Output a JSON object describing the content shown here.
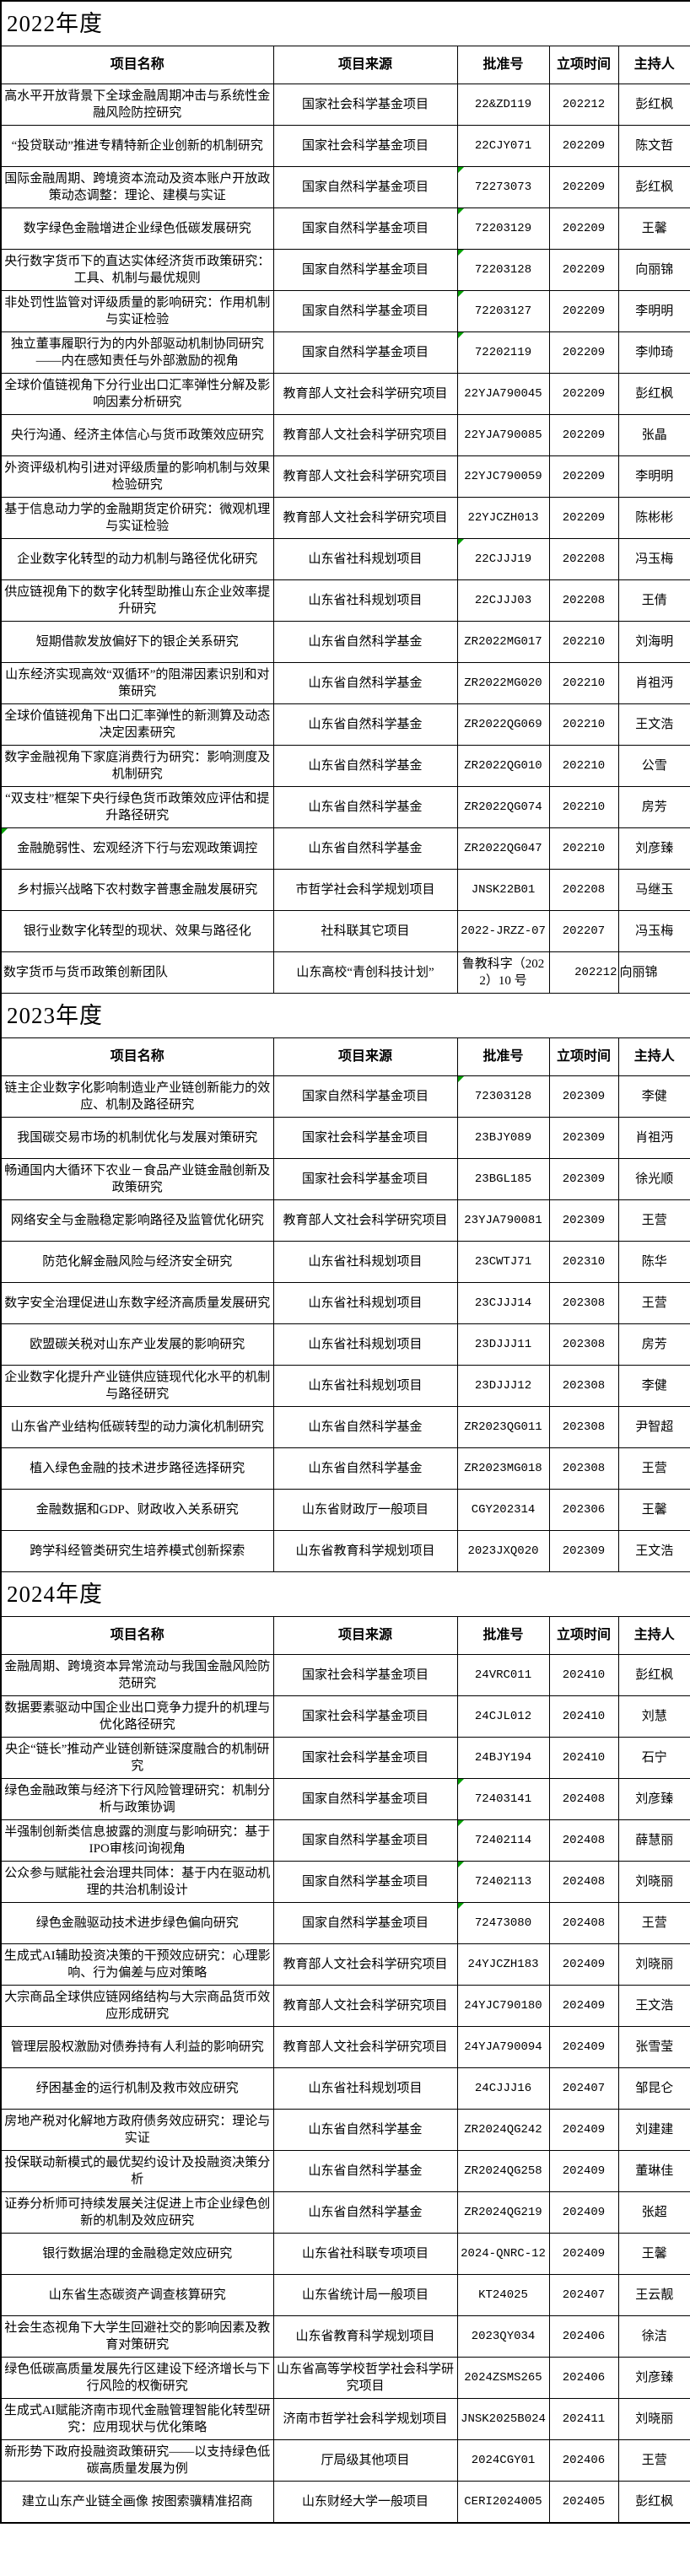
{
  "colors": {
    "background": "#ffffff",
    "border": "#000000",
    "text": "#000000",
    "error_flag_green": "#00a000"
  },
  "columns": [
    "项目名称",
    "项目来源",
    "批准号",
    "立项时间",
    "主持人"
  ],
  "sections": [
    {
      "year": "2022年度",
      "rows": [
        {
          "name": "高水平开放背景下全球金融周期冲击与系统性金融风险防控研究",
          "source": "国家社会科学基金项目",
          "no": "22&ZD119",
          "date": "202212",
          "host": "彭红枫"
        },
        {
          "name": "“投贷联动”推进专精特新企业创新的机制研究",
          "source": "国家社会科学基金项目",
          "no": "22CJY071",
          "date": "202209",
          "host": "陈文哲"
        },
        {
          "name": "国际金融周期、跨境资本流动及资本账户开放政策动态调整：理论、建模与实证",
          "source": "国家自然科学基金项目",
          "no": "72273073",
          "date": "202209",
          "host": "彭红枫",
          "no_flag": true
        },
        {
          "name": "数字绿色金融增进企业绿色低碳发展研究",
          "source": "国家自然科学基金项目",
          "no": "72203129",
          "date": "202209",
          "host": "王馨",
          "no_flag": true
        },
        {
          "name": "央行数字货币下的直达实体经济货币政策研究：工具、机制与最优规则",
          "source": "国家自然科学基金项目",
          "no": "72203128",
          "date": "202209",
          "host": "向丽锦",
          "no_flag": true
        },
        {
          "name": "非处罚性监管对评级质量的影响研究：作用机制与实证检验",
          "source": "国家自然科学基金项目",
          "no": "72203127",
          "date": "202209",
          "host": "李明明",
          "no_flag": true
        },
        {
          "name": "独立董事履职行为的内外部驱动机制协同研究——内在感知责任与外部激励的视角",
          "source": "国家自然科学基金项目",
          "no": "72202119",
          "date": "202209",
          "host": "李帅琦",
          "no_flag": true
        },
        {
          "name": "全球价值链视角下分行业出口汇率弹性分解及影响因素分析研究",
          "source": "教育部人文社会科学研究项目",
          "no": "22YJA790045",
          "date": "202209",
          "host": "彭红枫"
        },
        {
          "name": "央行沟通、经济主体信心与货币政策效应研究",
          "source": "教育部人文社会科学研究项目",
          "no": "22YJA790085",
          "date": "202209",
          "host": "张晶"
        },
        {
          "name": "外资评级机构引进对评级质量的影响机制与效果检验研究",
          "source": "教育部人文社会科学研究项目",
          "no": "22YJC790059",
          "date": "202209",
          "host": "李明明"
        },
        {
          "name": "基于信息动力学的金融期货定价研究：微观机理与实证检验",
          "source": "教育部人文社会科学研究项目",
          "no": "22YJCZH013",
          "date": "202209",
          "host": "陈彬彬"
        },
        {
          "name": "企业数字化转型的动力机制与路径优化研究",
          "source": "山东省社科规划项目",
          "no": "22CJJJ19",
          "date": "202208",
          "host": "冯玉梅",
          "no_flag": true
        },
        {
          "name": "供应链视角下的数字化转型助推山东企业效率提升研究",
          "source": "山东省社科规划项目",
          "no": "22CJJJ03",
          "date": "202208",
          "host": "王倩"
        },
        {
          "name": "短期借款发放偏好下的银企关系研究",
          "source": "山东省自然科学基金",
          "no": "ZR2022MG017",
          "date": "202210",
          "host": "刘海明"
        },
        {
          "name": "山东经济实现高效“双循环”的阻滞因素识别和对策研究",
          "source": "山东省自然科学基金",
          "no": "ZR2022MG020",
          "date": "202210",
          "host": "肖祖沔"
        },
        {
          "name": "全球价值链视角下出口汇率弹性的新测算及动态决定因素研究",
          "source": "山东省自然科学基金",
          "no": "ZR2022QG069",
          "date": "202210",
          "host": "王文浩"
        },
        {
          "name": "数字金融视角下家庭消费行为研究：影响测度及机制研究",
          "source": "山东省自然科学基金",
          "no": "ZR2022QG010",
          "date": "202210",
          "host": "公雪"
        },
        {
          "name": "“双支柱”框架下央行绿色货币政策效应评估和提升路径研究",
          "source": "山东省自然科学基金",
          "no": "ZR2022QG074",
          "date": "202210",
          "host": "房芳"
        },
        {
          "name": "金融脆弱性、宏观经济下行与宏观政策调控",
          "source": "山东省自然科学基金",
          "no": "ZR2022QG047",
          "date": "202210",
          "host": "刘彦臻",
          "name_flag": true
        },
        {
          "name": "乡村振兴战略下农村数字普惠金融发展研究",
          "source": "市哲学社会科学规划项目",
          "no": "JNSK22B01",
          "date": "202208",
          "host": "马继玉"
        },
        {
          "name": "银行业数字化转型的现状、效果与路径化",
          "source": "社科联其它项目",
          "no": "2022-JRZZ-07",
          "date": "202207",
          "host": "冯玉梅"
        },
        {
          "name": "数字货币与货币政策创新团队",
          "source": "山东高校“青创科技计划”",
          "no": "鲁教科字（2022）10 号",
          "date": "202212",
          "host": "向丽锦",
          "special": true,
          "no_cn": true
        }
      ]
    },
    {
      "year": "2023年度",
      "rows": [
        {
          "name": "链主企业数字化影响制造业产业链创新能力的效应、机制及路径研究",
          "source": "国家自然科学基金项目",
          "no": "72303128",
          "date": "202309",
          "host": "李健",
          "no_flag": true
        },
        {
          "name": "我国碳交易市场的机制优化与发展对策研究",
          "source": "国家社会科学基金项目",
          "no": "23BJY089",
          "date": "202309",
          "host": "肖祖沔"
        },
        {
          "name": "畅通国内大循环下农业－食品产业链金融创新及政策研究",
          "source": "国家社会科学基金项目",
          "no": "23BGL185",
          "date": "202309",
          "host": "徐光顺"
        },
        {
          "name": "网络安全与金融稳定影响路径及监管优化研究",
          "source": "教育部人文社会科学研究项目",
          "no": "23YJA790081",
          "date": "202309",
          "host": "王营"
        },
        {
          "name": "防范化解金融风险与经济安全研究",
          "source": "山东省社科规划项目",
          "no": "23CWTJ71",
          "date": "202310",
          "host": "陈华"
        },
        {
          "name": "数字安全治理促进山东数字经济高质量发展研究",
          "source": "山东省社科规划项目",
          "no": "23CJJJ14",
          "date": "202308",
          "host": "王营"
        },
        {
          "name": "欧盟碳关税对山东产业发展的影响研究",
          "source": "山东省社科规划项目",
          "no": "23DJJJ11",
          "date": "202308",
          "host": "房芳"
        },
        {
          "name": "企业数字化提升产业链供应链现代化水平的机制与路径研究",
          "source": "山东省社科规划项目",
          "no": "23DJJJ12",
          "date": "202308",
          "host": "李健"
        },
        {
          "name": "山东省产业结构低碳转型的动力演化机制研究",
          "source": "山东省自然科学基金",
          "no": "ZR2023QG011",
          "date": "202308",
          "host": "尹智超"
        },
        {
          "name": "植入绿色金融的技术进步路径选择研究",
          "source": "山东省自然科学基金",
          "no": "ZR2023MG018",
          "date": "202308",
          "host": "王营"
        },
        {
          "name": "金融数据和GDP、财政收入关系研究",
          "source": "山东省财政厅一般项目",
          "no": "CGY202314",
          "date": "202306",
          "host": "王馨"
        },
        {
          "name": "跨学科经管类研究生培养模式创新探索",
          "source": "山东省教育科学规划项目",
          "no": "2023JXQ020",
          "date": "202309",
          "host": "王文浩"
        }
      ]
    },
    {
      "year": "2024年度",
      "rows": [
        {
          "name": "金融周期、跨境资本异常流动与我国金融风险防范研究",
          "source": "国家社会科学基金项目",
          "no": "24VRC011",
          "date": "202410",
          "host": "彭红枫"
        },
        {
          "name": "数据要素驱动中国企业出口竞争力提升的机理与优化路径研究",
          "source": "国家社会科学基金项目",
          "no": "24CJL012",
          "date": "202410",
          "host": "刘慧"
        },
        {
          "name": "央企“链长”推动产业链创新链深度融合的机制研究",
          "source": "国家社会科学基金项目",
          "no": "24BJY194",
          "date": "202410",
          "host": "石宁"
        },
        {
          "name": "绿色金融政策与经济下行风险管理研究：机制分析与政策协调",
          "source": "国家自然科学基金项目",
          "no": "72403141",
          "date": "202408",
          "host": "刘彦臻",
          "no_flag": true
        },
        {
          "name": "半强制创新类信息披露的测度与影响研究：基于IPO审核问询视角",
          "source": "国家自然科学基金项目",
          "no": "72402114",
          "date": "202408",
          "host": "薛慧丽",
          "no_flag": true
        },
        {
          "name": "公众参与赋能社会治理共同体：基于内在驱动机理的共治机制设计",
          "source": "国家自然科学基金项目",
          "no": "72402113",
          "date": "202408",
          "host": "刘晓丽",
          "no_flag": true
        },
        {
          "name": "绿色金融驱动技术进步绿色偏向研究",
          "source": "国家自然科学基金项目",
          "no": "72473080",
          "date": "202408",
          "host": "王营",
          "no_flag": true
        },
        {
          "name": "生成式AI辅助投资决策的干预效应研究：心理影响、行为偏差与应对策略",
          "source": "教育部人文社会科学研究项目",
          "no": "24YJCZH183",
          "date": "202409",
          "host": "刘晓丽"
        },
        {
          "name": "大宗商品全球供应链网络结构与大宗商品货币效应形成研究",
          "source": "教育部人文社会科学研究项目",
          "no": "24YJC790180",
          "date": "202409",
          "host": "王文浩"
        },
        {
          "name": "管理层股权激励对债券持有人利益的影响研究",
          "source": "教育部人文社会科学研究项目",
          "no": "24YJA790094",
          "date": "202409",
          "host": "张雪莹"
        },
        {
          "name": "纾困基金的运行机制及救市效应研究",
          "source": "山东省社科规划项目",
          "no": "24CJJJ16",
          "date": "202407",
          "host": "邹昆仑"
        },
        {
          "name": "房地产税对化解地方政府债务效应研究：理论与实证",
          "source": "山东省自然科学基金",
          "no": "ZR2024QG242",
          "date": "202409",
          "host": "刘建建"
        },
        {
          "name": "投保联动新模式的最优契约设计及投融资决策分析",
          "source": "山东省自然科学基金",
          "no": "ZR2024QG258",
          "date": "202409",
          "host": "董琳佳"
        },
        {
          "name": "证券分析师可持续发展关注促进上市企业绿色创新的机制及效应研究",
          "source": "山东省自然科学基金",
          "no": "ZR2024QG219",
          "date": "202409",
          "host": "张超"
        },
        {
          "name": "银行数据治理的金融稳定效应研究",
          "source": "山东省社科联专项项目",
          "no": "2024-QNRC-12",
          "date": "202409",
          "host": "王馨"
        },
        {
          "name": "山东省生态碳资产调查核算研究",
          "source": "山东省统计局一般项目",
          "no": "KT24025",
          "date": "202407",
          "host": "王云靓"
        },
        {
          "name": "社会生态视角下大学生回避社交的影响因素及教育对策研究",
          "source": "山东省教育科学规划项目",
          "no": "2023QY034",
          "date": "202406",
          "host": "徐洁"
        },
        {
          "name": "绿色低碳高质量发展先行区建设下经济增长与下行风险的权衡研究",
          "source": "山东省高等学校哲学社会科学研究项目",
          "no": "2024ZSMS265",
          "date": "202406",
          "host": "刘彦臻"
        },
        {
          "name": "生成式AI赋能济南市现代金融管理智能化转型研究：应用现状与优化策略",
          "source": "济南市哲学社会科学规划项目",
          "no": "JNSK2025B024",
          "date": "202411",
          "host": "刘晓丽"
        },
        {
          "name": "新形势下政府投融资政策研究——以支持绿色低碳高质量发展为例",
          "source": "厅局级其他项目",
          "no": "2024CGY01",
          "date": "202406",
          "host": "王营"
        },
        {
          "name": "建立山东产业链全画像 按图索骥精准招商",
          "source": "山东财经大学一般项目",
          "no": "CERI2024005",
          "date": "202405",
          "host": "彭红枫"
        }
      ]
    }
  ]
}
